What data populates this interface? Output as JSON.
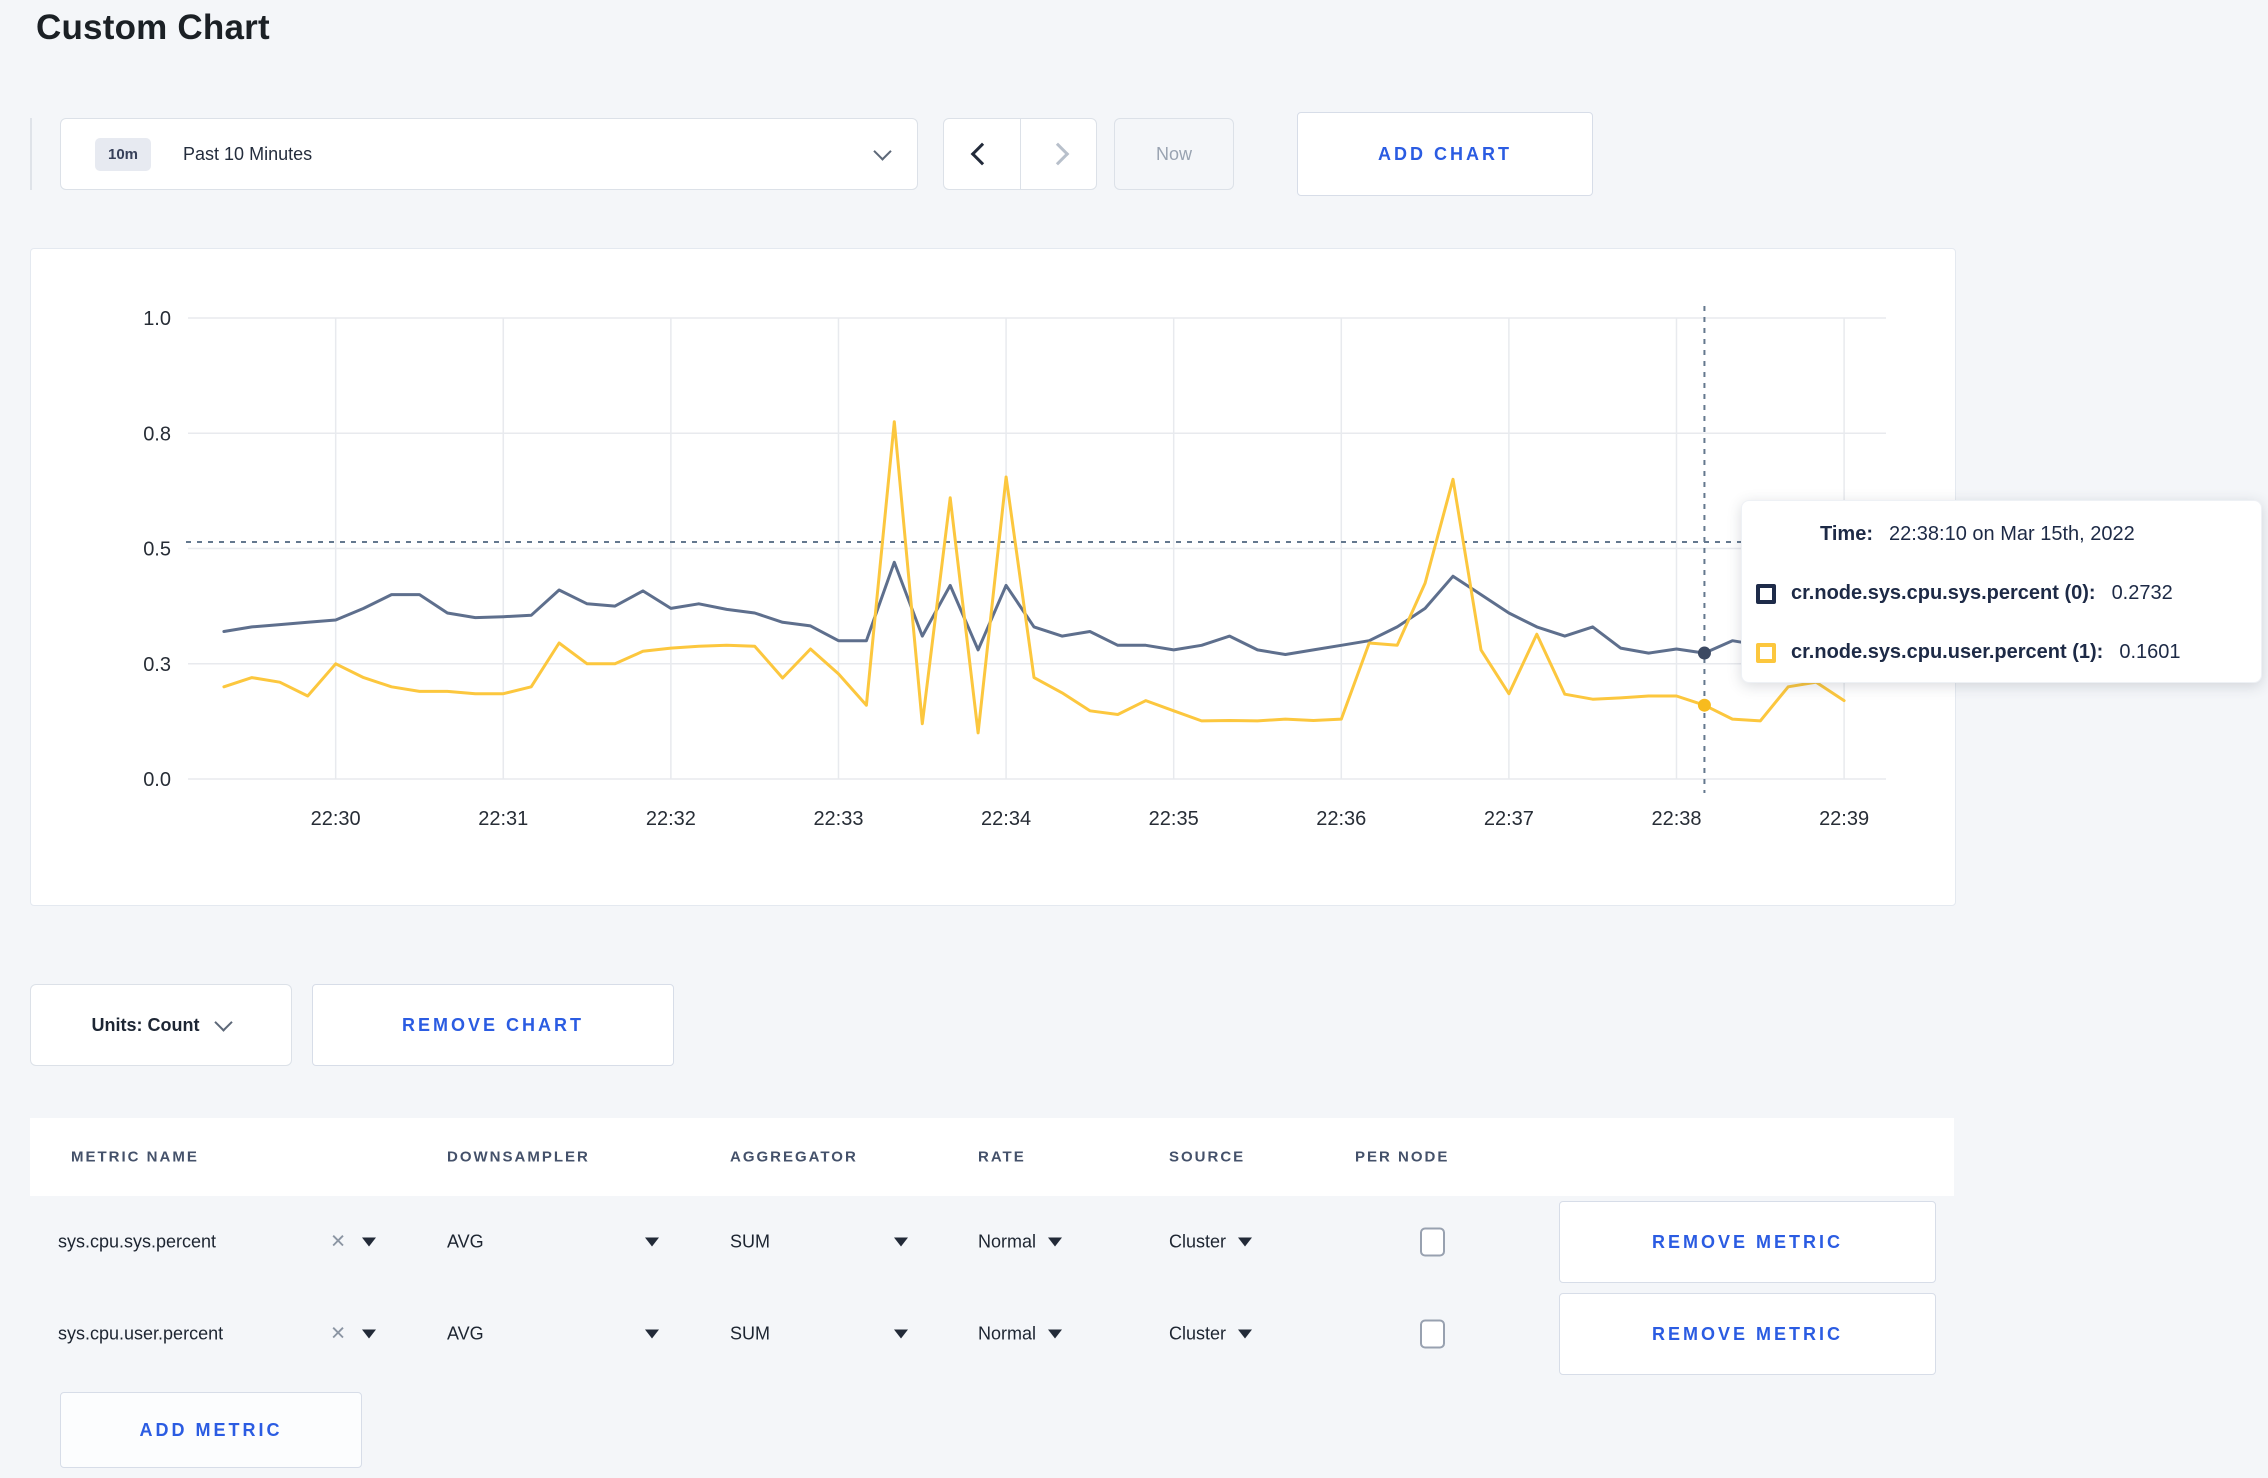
{
  "page": {
    "title": "Custom Chart"
  },
  "colors": {
    "accent_blue": "#2b5ce2",
    "page_background": "#f4f6f9",
    "series_sys_line": "#5e6f8d",
    "series_user_line": "#fcc73e"
  },
  "icons": {
    "timescale_dropdown": "chevron-down-icon",
    "prev": "chevron-left-icon",
    "next": "chevron-right-icon",
    "units_dropdown": "chevron-down-icon",
    "metric_clear": "x-icon",
    "select_caret": "caret-down-icon"
  },
  "toolbar": {
    "timescale_badge": "10m",
    "timescale_label": "Past 10 Minutes",
    "now_label": "Now",
    "add_chart_label": "ADD CHART"
  },
  "chart_data": {
    "type": "line",
    "title": "",
    "xlabel": "",
    "ylabel": "",
    "ylim": [
      0,
      1
    ],
    "grid": true,
    "legend_position": "tooltip",
    "x_domain_seconds": [
      0,
      605
    ],
    "x_domain_note": "t=0 corresponds to 22:29:10; samples every 10s starting 22:29:20",
    "x_start_seconds": 10,
    "x_interval_seconds": 10,
    "x_ticks": [
      {
        "label": "22:30",
        "t": 50
      },
      {
        "label": "22:31",
        "t": 110
      },
      {
        "label": "22:32",
        "t": 170
      },
      {
        "label": "22:33",
        "t": 230
      },
      {
        "label": "22:34",
        "t": 290
      },
      {
        "label": "22:35",
        "t": 350
      },
      {
        "label": "22:36",
        "t": 410
      },
      {
        "label": "22:37",
        "t": 470
      },
      {
        "label": "22:38",
        "t": 530
      },
      {
        "label": "22:39",
        "t": 590
      }
    ],
    "y_ticks": [
      {
        "label": "0.0",
        "v": 0
      },
      {
        "label": "0.3",
        "v": 0.25
      },
      {
        "label": "0.5",
        "v": 0.5
      },
      {
        "label": "0.8",
        "v": 0.75
      },
      {
        "label": "1.0",
        "v": 1
      }
    ],
    "series": [
      {
        "name": "cr.node.sys.cpu.sys.percent",
        "color": "#5e6f8d",
        "dot": "#3c4962",
        "values": [
          0.32,
          0.33,
          0.335,
          0.34,
          0.345,
          0.37,
          0.4,
          0.4,
          0.36,
          0.35,
          0.352,
          0.355,
          0.41,
          0.38,
          0.375,
          0.408,
          0.37,
          0.38,
          0.368,
          0.36,
          0.34,
          0.332,
          0.3,
          0.3,
          0.47,
          0.31,
          0.42,
          0.28,
          0.42,
          0.33,
          0.31,
          0.32,
          0.29,
          0.29,
          0.28,
          0.29,
          0.31,
          0.28,
          0.27,
          0.28,
          0.29,
          0.3,
          0.33,
          0.37,
          0.44,
          0.4,
          0.36,
          0.33,
          0.31,
          0.33,
          0.284,
          0.273,
          0.282,
          0.2732,
          0.3,
          0.29,
          0.3,
          0.31,
          0.3
        ]
      },
      {
        "name": "cr.node.sys.cpu.user.percent",
        "color": "#fcc73e",
        "dot": "#f7bb1e",
        "values": [
          0.2,
          0.22,
          0.21,
          0.18,
          0.25,
          0.22,
          0.2,
          0.19,
          0.19,
          0.185,
          0.185,
          0.2,
          0.295,
          0.25,
          0.25,
          0.277,
          0.284,
          0.288,
          0.29,
          0.288,
          0.219,
          0.282,
          0.228,
          0.16,
          0.775,
          0.12,
          0.61,
          0.1,
          0.655,
          0.22,
          0.187,
          0.148,
          0.14,
          0.17,
          0.148,
          0.126,
          0.127,
          0.126,
          0.13,
          0.127,
          0.13,
          0.295,
          0.29,
          0.425,
          0.65,
          0.28,
          0.185,
          0.314,
          0.184,
          0.173,
          0.176,
          0.18,
          0.18,
          0.1601,
          0.13,
          0.126,
          0.2,
          0.21,
          0.17
        ]
      }
    ],
    "crosshair": {
      "t": 540,
      "time": "22:38:10",
      "mouse_value": 0.514,
      "points": [
        0.2732,
        0.1601
      ]
    }
  },
  "tooltip": {
    "time_label": "Time:",
    "time_value": "22:38:10 on Mar 15th, 2022",
    "rows": [
      {
        "label": "cr.node.sys.cpu.sys.percent (0):",
        "value": "0.2732",
        "swatch": "#1e2b49"
      },
      {
        "label": "cr.node.sys.cpu.user.percent (1):",
        "value": "0.1601",
        "swatch": "#fcc73e"
      }
    ]
  },
  "chart_footer": {
    "units_label": "Units: Count",
    "remove_chart_label": "REMOVE CHART"
  },
  "metrics_table": {
    "columns": [
      "METRIC NAME",
      "DOWNSAMPLER",
      "AGGREGATOR",
      "RATE",
      "SOURCE",
      "PER NODE"
    ],
    "remove_metric_label": "REMOVE METRIC",
    "add_metric_label": "ADD METRIC",
    "rows": [
      {
        "metric_name": "sys.cpu.sys.percent",
        "downsampler": "AVG",
        "aggregator": "SUM",
        "rate": "Normal",
        "source": "Cluster",
        "per_node": false
      },
      {
        "metric_name": "sys.cpu.user.percent",
        "downsampler": "AVG",
        "aggregator": "SUM",
        "rate": "Normal",
        "source": "Cluster",
        "per_node": false
      }
    ]
  }
}
